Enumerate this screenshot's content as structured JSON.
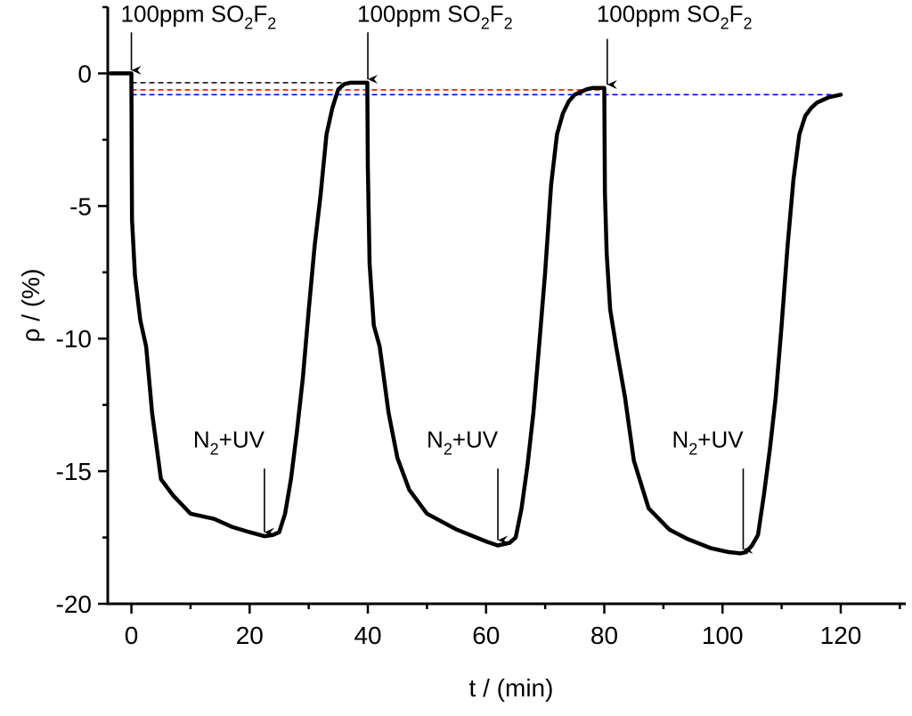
{
  "chart_data": {
    "type": "line",
    "title": "",
    "xlabel": "t / (min)",
    "ylabel": "ρ / (%)",
    "xlim": [
      -4,
      131
    ],
    "ylim": [
      -20,
      2.5
    ],
    "xticks": [
      0,
      20,
      40,
      60,
      80,
      100,
      120
    ],
    "yticks": [
      0,
      -5,
      -10,
      -15,
      -20
    ],
    "grid": false,
    "series": [
      {
        "name": "response",
        "color": "#000000",
        "x": [
          -3.5,
          0,
          0.1,
          0.6,
          1.5,
          2.5,
          3.5,
          5,
          7,
          10,
          14,
          17,
          20,
          22.5,
          24,
          25,
          26,
          27,
          28,
          29,
          30,
          31,
          32,
          33,
          34,
          35,
          36,
          37,
          38,
          39.9,
          40,
          40.3,
          41,
          42,
          43.5,
          45,
          47,
          50,
          55,
          60,
          62,
          64,
          65,
          66,
          67,
          68,
          69,
          70,
          71,
          72,
          73,
          74,
          75,
          76,
          77,
          78,
          80,
          80.1,
          80.4,
          81,
          82,
          83.5,
          85,
          87.5,
          91,
          94,
          98,
          101,
          103,
          104,
          105,
          106,
          107,
          108,
          109,
          110,
          111,
          112,
          113,
          114,
          115,
          116,
          118,
          120
        ],
        "y": [
          0,
          0,
          -5.5,
          -7.6,
          -9.3,
          -10.3,
          -12.8,
          -15.3,
          -15.9,
          -16.6,
          -16.8,
          -17.1,
          -17.3,
          -17.45,
          -17.4,
          -17.3,
          -16.6,
          -15.3,
          -13.5,
          -11.5,
          -8.9,
          -6.5,
          -4.6,
          -2.3,
          -1.3,
          -0.6,
          -0.4,
          -0.35,
          -0.35,
          -0.35,
          -3.5,
          -7.2,
          -9.5,
          -10.3,
          -12.8,
          -14.5,
          -15.7,
          -16.6,
          -17.2,
          -17.65,
          -17.8,
          -17.7,
          -17.5,
          -16.4,
          -14.8,
          -12.8,
          -10.2,
          -7.5,
          -4.2,
          -2.3,
          -1.5,
          -1.05,
          -0.8,
          -0.7,
          -0.6,
          -0.55,
          -0.55,
          -4.5,
          -6.8,
          -8.9,
          -10.3,
          -12.2,
          -14.6,
          -16.4,
          -17.2,
          -17.55,
          -17.9,
          -18.05,
          -18.1,
          -18.05,
          -17.8,
          -17.4,
          -15.9,
          -14.2,
          -12.2,
          -9.5,
          -6.5,
          -4.0,
          -2.3,
          -1.6,
          -1.3,
          -1.1,
          -0.9,
          -0.8
        ]
      }
    ],
    "reference_lines": [
      {
        "name": "baseline-2",
        "color": "#000000",
        "x_start": 0,
        "x_end": 40,
        "y": -0.35
      },
      {
        "name": "baseline-3",
        "color": "#ff0000",
        "x_start": 0,
        "x_end": 80,
        "y": -0.62
      },
      {
        "name": "baseline-4",
        "color": "#0000ff",
        "x_start": 0,
        "x_end": 120,
        "y": -0.8
      }
    ],
    "annotations": [
      {
        "name": "so2f2-1",
        "kind": "gas",
        "prefix": "100ppm SO",
        "sub1": "2",
        "mid": "F",
        "sub2": "2",
        "x": 0,
        "y_text": 1.95,
        "arrow_from": 1.55,
        "arrow_to": 0.12
      },
      {
        "name": "so2f2-2",
        "kind": "gas",
        "prefix": "100ppm SO",
        "sub1": "2",
        "mid": "F",
        "sub2": "2",
        "x": 40,
        "y_text": 1.95,
        "arrow_from": 1.55,
        "arrow_to": -0.22
      },
      {
        "name": "so2f2-3",
        "kind": "gas",
        "prefix": "100ppm SO",
        "sub1": "2",
        "mid": "F",
        "sub2": "2",
        "x": 80.5,
        "y_text": 1.95,
        "arrow_from": 1.3,
        "arrow_to": -0.42
      },
      {
        "name": "n2uv-1",
        "kind": "purge",
        "prefix": "N",
        "sub1": "2",
        "mid": "+UV",
        "sub2": "",
        "x": 22.5,
        "y_text": -14.1,
        "arrow_from": -14.9,
        "arrow_to": -17.3
      },
      {
        "name": "n2uv-2",
        "kind": "purge",
        "prefix": "N",
        "sub1": "2",
        "mid": "+UV",
        "sub2": "",
        "x": 62,
        "y_text": -14.1,
        "arrow_from": -14.9,
        "arrow_to": -17.6
      },
      {
        "name": "n2uv-3",
        "kind": "purge",
        "prefix": "N",
        "sub1": "2",
        "mid": "+UV",
        "sub2": "",
        "x": 103.5,
        "y_text": -14.1,
        "arrow_from": -14.9,
        "arrow_to": -17.95
      }
    ]
  }
}
